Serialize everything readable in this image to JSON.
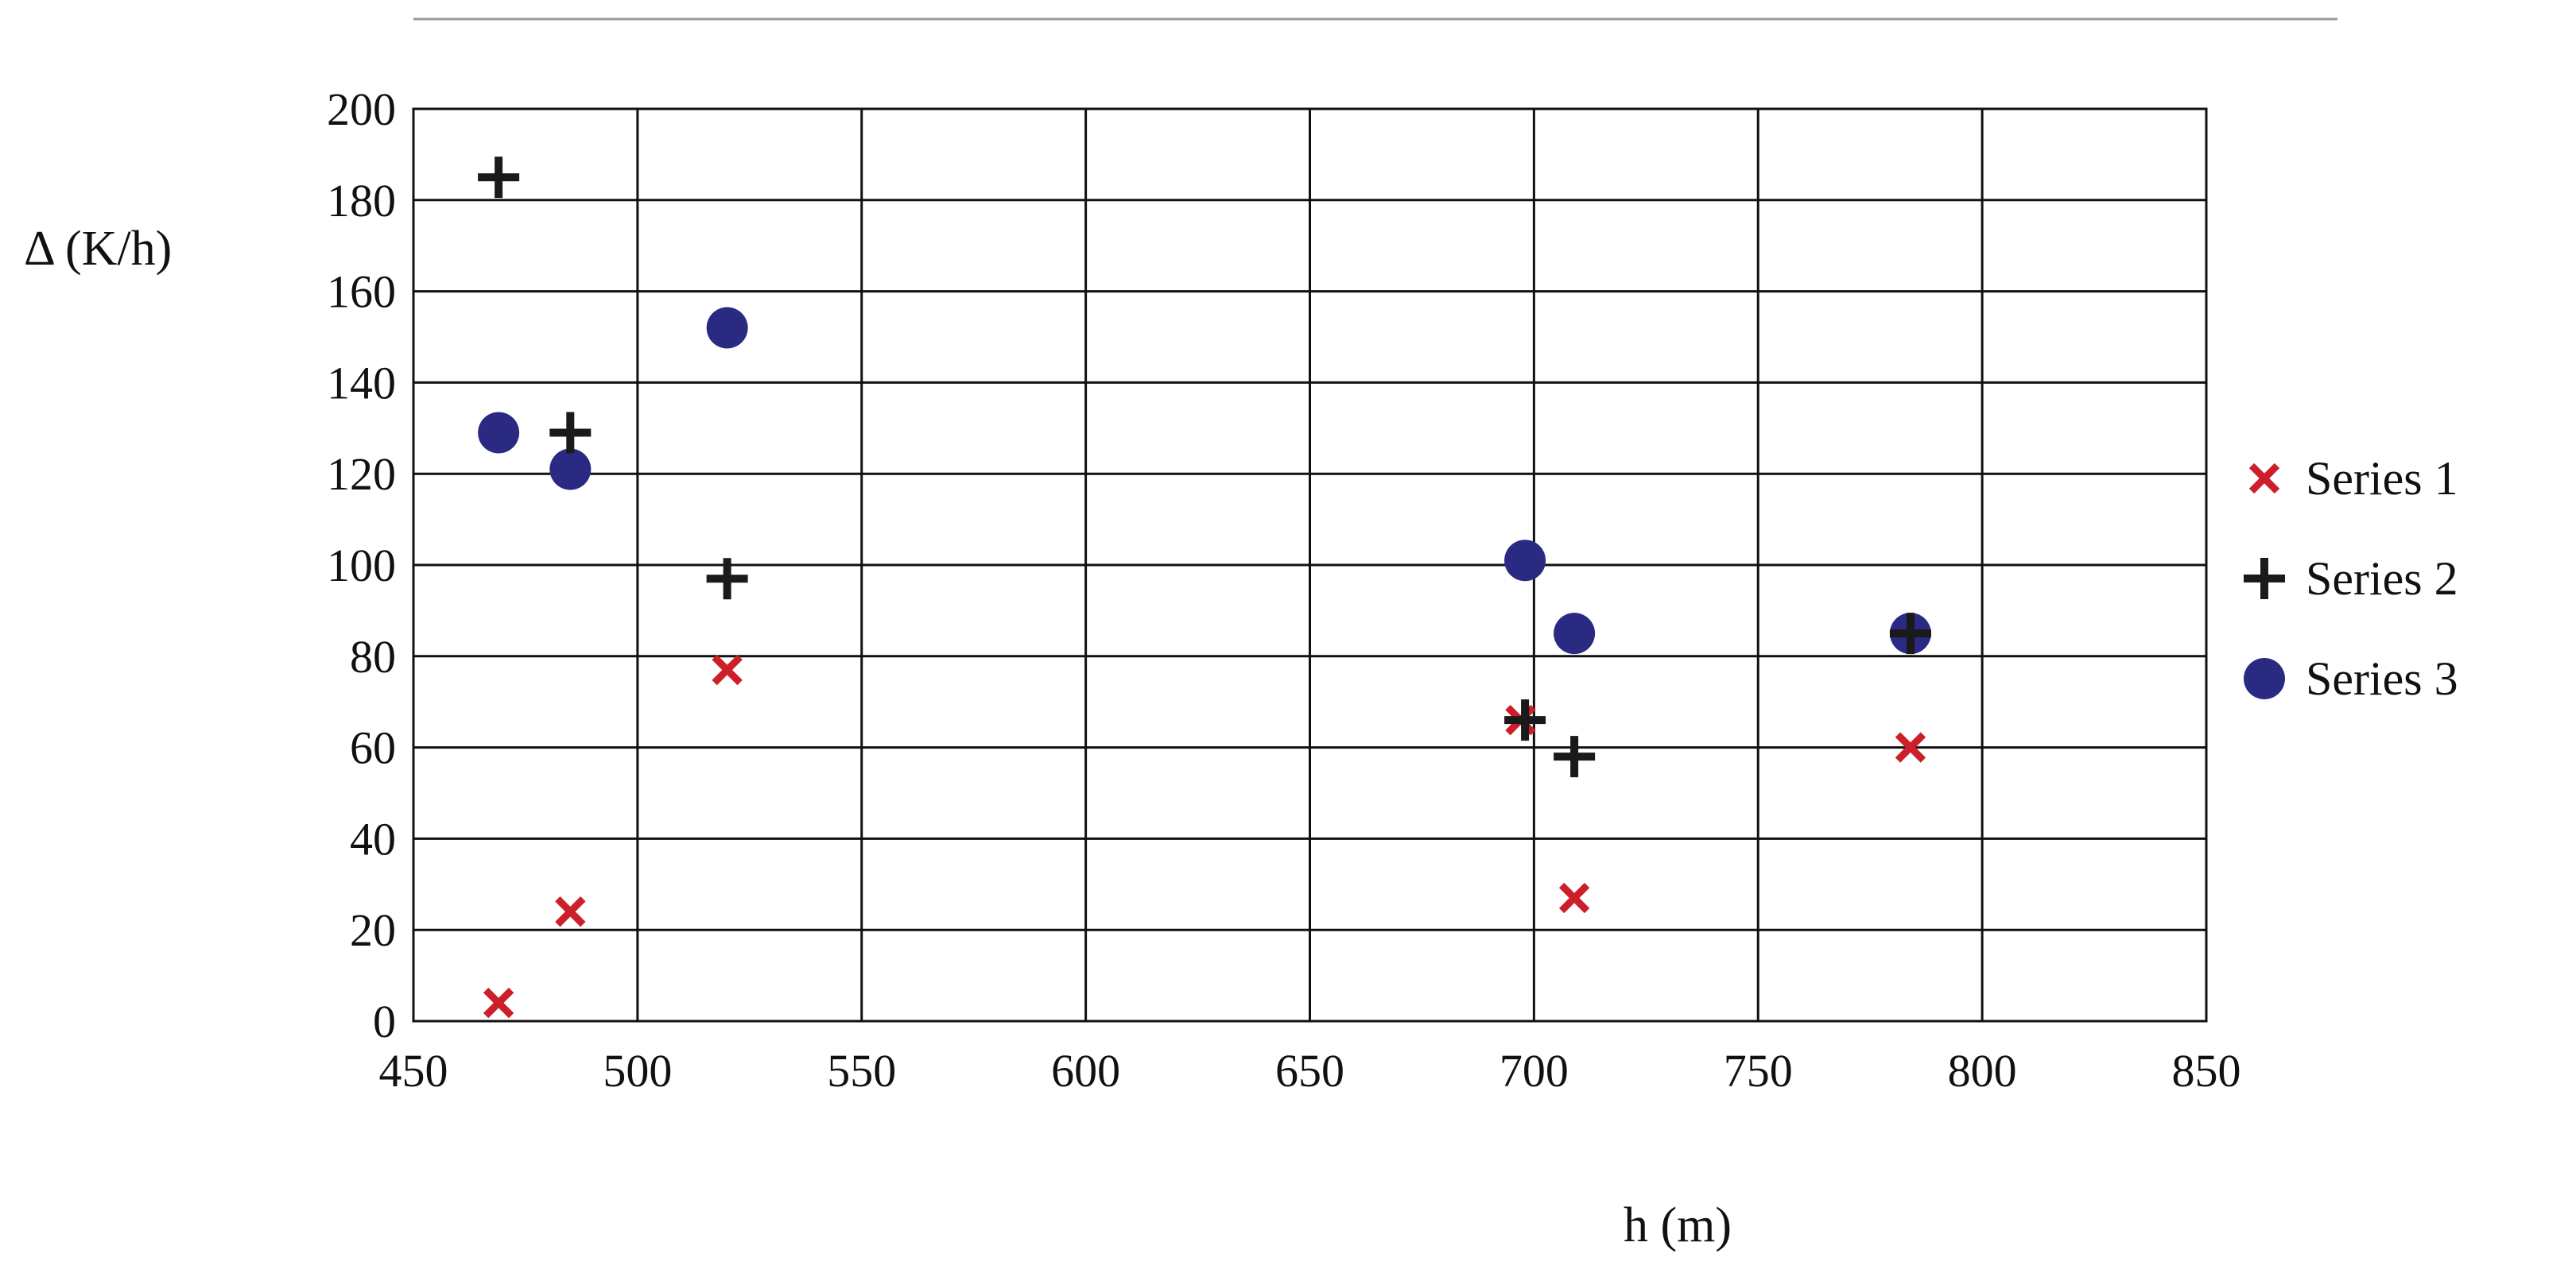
{
  "chart_data": {
    "type": "scatter",
    "title": "",
    "xlabel": "h (m)",
    "ylabel": "Δ (K/h)",
    "xlim": [
      450,
      850
    ],
    "ylim": [
      0,
      200
    ],
    "x_ticks": [
      450,
      500,
      550,
      600,
      650,
      700,
      750,
      800,
      850
    ],
    "y_ticks": [
      0,
      20,
      40,
      60,
      80,
      100,
      120,
      140,
      160,
      180,
      200
    ],
    "x_tick_labels": [
      "450",
      "500",
      "550",
      "600",
      "650",
      "700",
      "750",
      "800",
      "850"
    ],
    "y_tick_labels": [
      "0",
      "20",
      "40",
      "60",
      "80",
      "100",
      "120",
      "140",
      "160",
      "180",
      "200"
    ],
    "grid": true,
    "legend_position": "right",
    "series": [
      {
        "name": "Series 1",
        "marker": "x",
        "color": "#cc1f2a",
        "points": [
          {
            "x": 469,
            "y": 4
          },
          {
            "x": 485,
            "y": 24
          },
          {
            "x": 520,
            "y": 77
          },
          {
            "x": 697,
            "y": 66
          },
          {
            "x": 709,
            "y": 27
          },
          {
            "x": 784,
            "y": 60
          }
        ]
      },
      {
        "name": "Series 2",
        "marker": "plus",
        "color": "#1a1a1a",
        "points": [
          {
            "x": 469,
            "y": 185
          },
          {
            "x": 485,
            "y": 129
          },
          {
            "x": 520,
            "y": 97
          },
          {
            "x": 698,
            "y": 66
          },
          {
            "x": 709,
            "y": 58
          },
          {
            "x": 784,
            "y": 85
          }
        ]
      },
      {
        "name": "Series 3",
        "marker": "circle",
        "color": "#2a2a82",
        "points": [
          {
            "x": 469,
            "y": 129
          },
          {
            "x": 485,
            "y": 121
          },
          {
            "x": 520,
            "y": 152
          },
          {
            "x": 698,
            "y": 101
          },
          {
            "x": 709,
            "y": 85
          },
          {
            "x": 784,
            "y": 85
          }
        ]
      }
    ]
  }
}
